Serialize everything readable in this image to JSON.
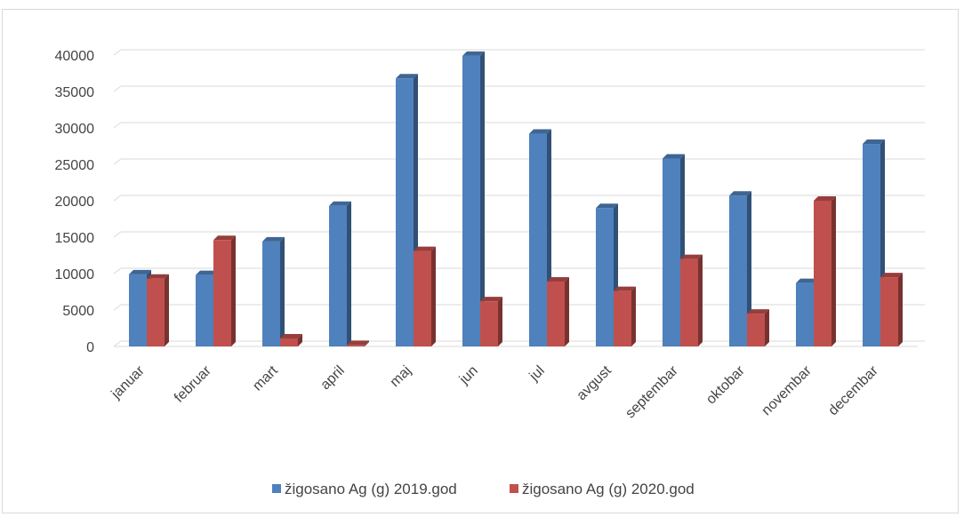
{
  "chart_data": {
    "type": "bar",
    "three_d": true,
    "categories": [
      "januar",
      "februar",
      "mart",
      "april",
      "maj",
      "jun",
      "jul",
      "avgust",
      "septembar",
      "oktobar",
      "novembar",
      "decembar"
    ],
    "series": [
      {
        "name": "žigosano Ag (g) 2019.god",
        "color": "#4f81bd",
        "values": [
          9900,
          9800,
          14400,
          19300,
          36800,
          39900,
          29200,
          19000,
          25800,
          20700,
          8700,
          27800
        ]
      },
      {
        "name": "žigosano Ag (g) 2020.god",
        "color": "#c0504d",
        "values": [
          9300,
          14600,
          1100,
          200,
          13100,
          6200,
          8900,
          7600,
          12000,
          4500,
          20000,
          9500
        ]
      }
    ],
    "yticks": [
      0,
      5000,
      10000,
      15000,
      20000,
      25000,
      30000,
      35000,
      40000
    ],
    "ylim": [
      0,
      40000
    ],
    "grid": true,
    "legend": "bottom"
  }
}
